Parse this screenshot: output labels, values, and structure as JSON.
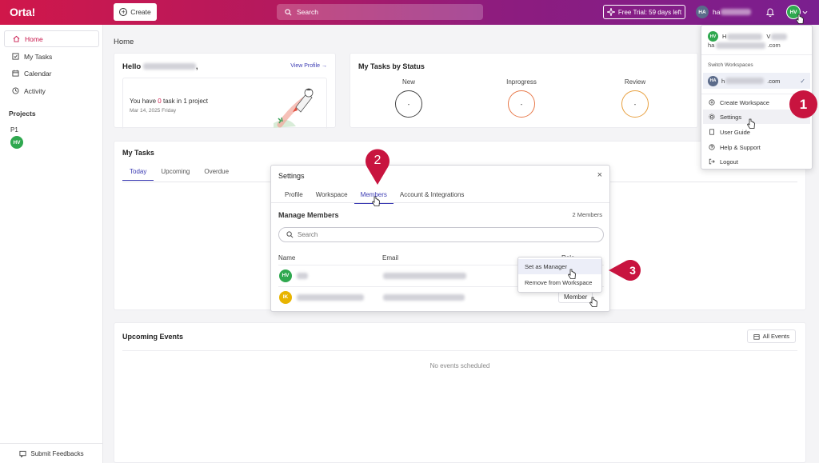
{
  "topbar": {
    "logo": "Orta!",
    "create_label": "Create",
    "search_placeholder": "Search",
    "trial_label": "Free Trial: 59 days left",
    "user_initials": "HA",
    "user_name_visible": "ha",
    "profile_initials": "HV"
  },
  "sidebar": {
    "items": [
      {
        "label": "Home",
        "icon": "home-icon"
      },
      {
        "label": "My Tasks",
        "icon": "checkbox-icon"
      },
      {
        "label": "Calendar",
        "icon": "calendar-icon"
      },
      {
        "label": "Activity",
        "icon": "activity-icon"
      }
    ],
    "projects_label": "Projects",
    "project_name": "P1",
    "project_avatar": "HV",
    "feedback_label": "Submit Feedbacks"
  },
  "home": {
    "title": "Home",
    "hello": "Hello",
    "hello_suffix": ",",
    "view_profile": "View Profile →",
    "task_prefix": "You have ",
    "task_count": "0",
    "task_suffix": " task in 1 project",
    "date": "Mar 14, 2025 Friday"
  },
  "status": {
    "title": "My Tasks by Status",
    "columns": [
      {
        "label": "New",
        "value": "-"
      },
      {
        "label": "Inprogress",
        "value": "-"
      },
      {
        "label": "Review",
        "value": "-"
      }
    ]
  },
  "my_tasks": {
    "title": "My Tasks",
    "tabs": [
      "Today",
      "Upcoming",
      "Overdue"
    ]
  },
  "events": {
    "title": "Upcoming Events",
    "all_events": "All Events",
    "empty": "No events scheduled"
  },
  "settings_modal": {
    "title": "Settings",
    "close": "×",
    "tabs": [
      "Profile",
      "Workspace",
      "Members",
      "Account & Integrations"
    ],
    "manage_title": "Manage Members",
    "members_count": "2 Members",
    "search_placeholder": "Search",
    "columns": {
      "name": "Name",
      "email": "Email",
      "role": "Role"
    },
    "rows": [
      {
        "initials": "HV"
      },
      {
        "initials": "IK",
        "role": "Member"
      }
    ],
    "role_menu": [
      "Set as Manager",
      "Remove from Workspace"
    ]
  },
  "user_menu": {
    "initials": "HV",
    "name_start": "H",
    "name_mid": "V",
    "email_start": "ha",
    "email_end": ".com",
    "switch_label": "Switch Workspaces",
    "workspace_initials": "HA",
    "workspace_start": "h",
    "workspace_end": ".com",
    "items": [
      "Create Workspace",
      "Settings",
      "User Guide",
      "Help & Support",
      "Logout"
    ]
  },
  "annotations": [
    "1",
    "2",
    "3"
  ],
  "colors": {
    "brand": "#d0174a",
    "accent": "#3b3bb3",
    "annotation": "#c8143f"
  }
}
